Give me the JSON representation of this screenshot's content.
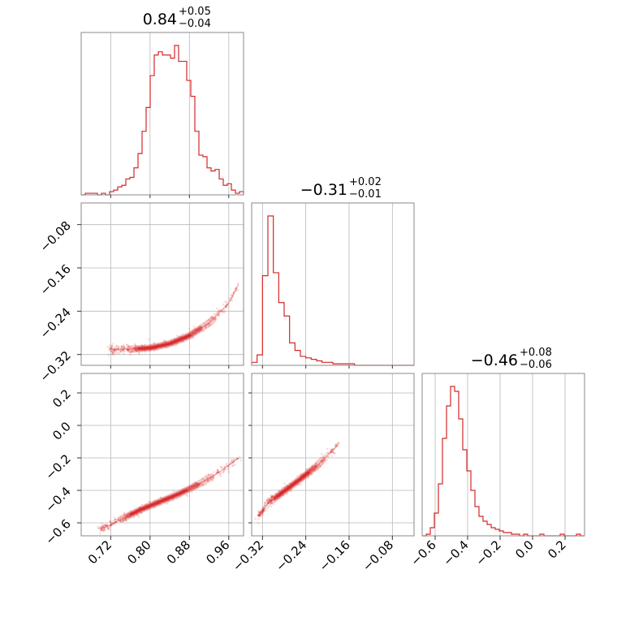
{
  "colors": {
    "series": "#d62728",
    "grid": "#b8b8b8",
    "frame": "#8a8a8a"
  },
  "chart_data": {
    "type": "corner",
    "parameters": [
      {
        "range": [
          0.66,
          0.99
        ],
        "ticks": [
          "0.72",
          "0.80",
          "0.88",
          "0.96"
        ],
        "tick_values": [
          0.72,
          0.8,
          0.88,
          0.96
        ]
      },
      {
        "range": [
          -0.34,
          -0.04
        ],
        "ticks": [
          "−0.32",
          "−0.24",
          "−0.16",
          "−0.08"
        ],
        "tick_values": [
          -0.32,
          -0.24,
          -0.16,
          -0.08
        ]
      },
      {
        "range": [
          -0.68,
          0.32
        ],
        "ticks": [
          "−0.6",
          "−0.4",
          "−0.2",
          "0.0",
          "0.2"
        ],
        "tick_values": [
          -0.6,
          -0.4,
          -0.2,
          0.0,
          0.2
        ]
      }
    ],
    "titles": [
      {
        "median": "0.84",
        "plus": "+0.05",
        "minus": "−0.04"
      },
      {
        "median": "−0.31",
        "plus": "+0.02",
        "minus": "−0.01"
      },
      {
        "median": "−0.46",
        "plus": "+0.08",
        "minus": "−0.06"
      }
    ],
    "histograms": [
      {
        "edges": [
          0.66,
          0.99
        ],
        "counts": [
          0,
          1,
          1,
          1,
          0,
          1,
          0,
          2,
          3,
          5,
          6,
          10,
          11,
          17,
          26,
          40,
          55,
          75,
          88,
          90,
          88,
          88,
          86,
          94,
          84,
          84,
          72,
          62,
          40,
          25,
          24,
          17,
          15,
          16,
          10,
          6,
          7,
          3,
          1,
          2
        ]
      },
      {
        "edges": [
          -0.34,
          -0.04
        ],
        "counts": [
          2,
          7,
          60,
          100,
          62,
          42,
          33,
          15,
          10,
          6,
          5,
          4,
          3,
          2,
          2,
          1,
          1,
          1,
          1,
          0,
          0,
          0,
          0,
          0,
          0,
          0,
          0,
          0,
          0,
          0
        ]
      },
      {
        "edges": [
          -0.68,
          0.32
        ],
        "counts": [
          0,
          1,
          5,
          14,
          32,
          60,
          80,
          92,
          89,
          72,
          53,
          40,
          28,
          18,
          12,
          9,
          7,
          5,
          4,
          3,
          2,
          2,
          1,
          1,
          0,
          1,
          0,
          0,
          0,
          1,
          0,
          0,
          0,
          0,
          1,
          0,
          0,
          0,
          1,
          0
        ]
      }
    ],
    "pairs": [
      {
        "x_param": 0,
        "y_param": 1,
        "curve": {
          "x": [
            0.72,
            0.76,
            0.8,
            0.84,
            0.88,
            0.92,
            0.96,
            0.98
          ],
          "y": [
            -0.31,
            -0.31,
            -0.308,
            -0.3,
            -0.285,
            -0.262,
            -0.225,
            -0.19
          ]
        }
      },
      {
        "x_param": 0,
        "y_param": 2,
        "curve": {
          "x": [
            0.7,
            0.74,
            0.78,
            0.82,
            0.86,
            0.9,
            0.94,
            0.98
          ],
          "y": [
            -0.64,
            -0.58,
            -0.52,
            -0.47,
            -0.42,
            -0.36,
            -0.29,
            -0.2
          ]
        }
      },
      {
        "x_param": 1,
        "y_param": 2,
        "curve": {
          "x": [
            -0.325,
            -0.31,
            -0.29,
            -0.27,
            -0.25,
            -0.22,
            -0.18
          ],
          "y": [
            -0.55,
            -0.48,
            -0.43,
            -0.38,
            -0.33,
            -0.25,
            -0.12
          ]
        }
      }
    ]
  }
}
